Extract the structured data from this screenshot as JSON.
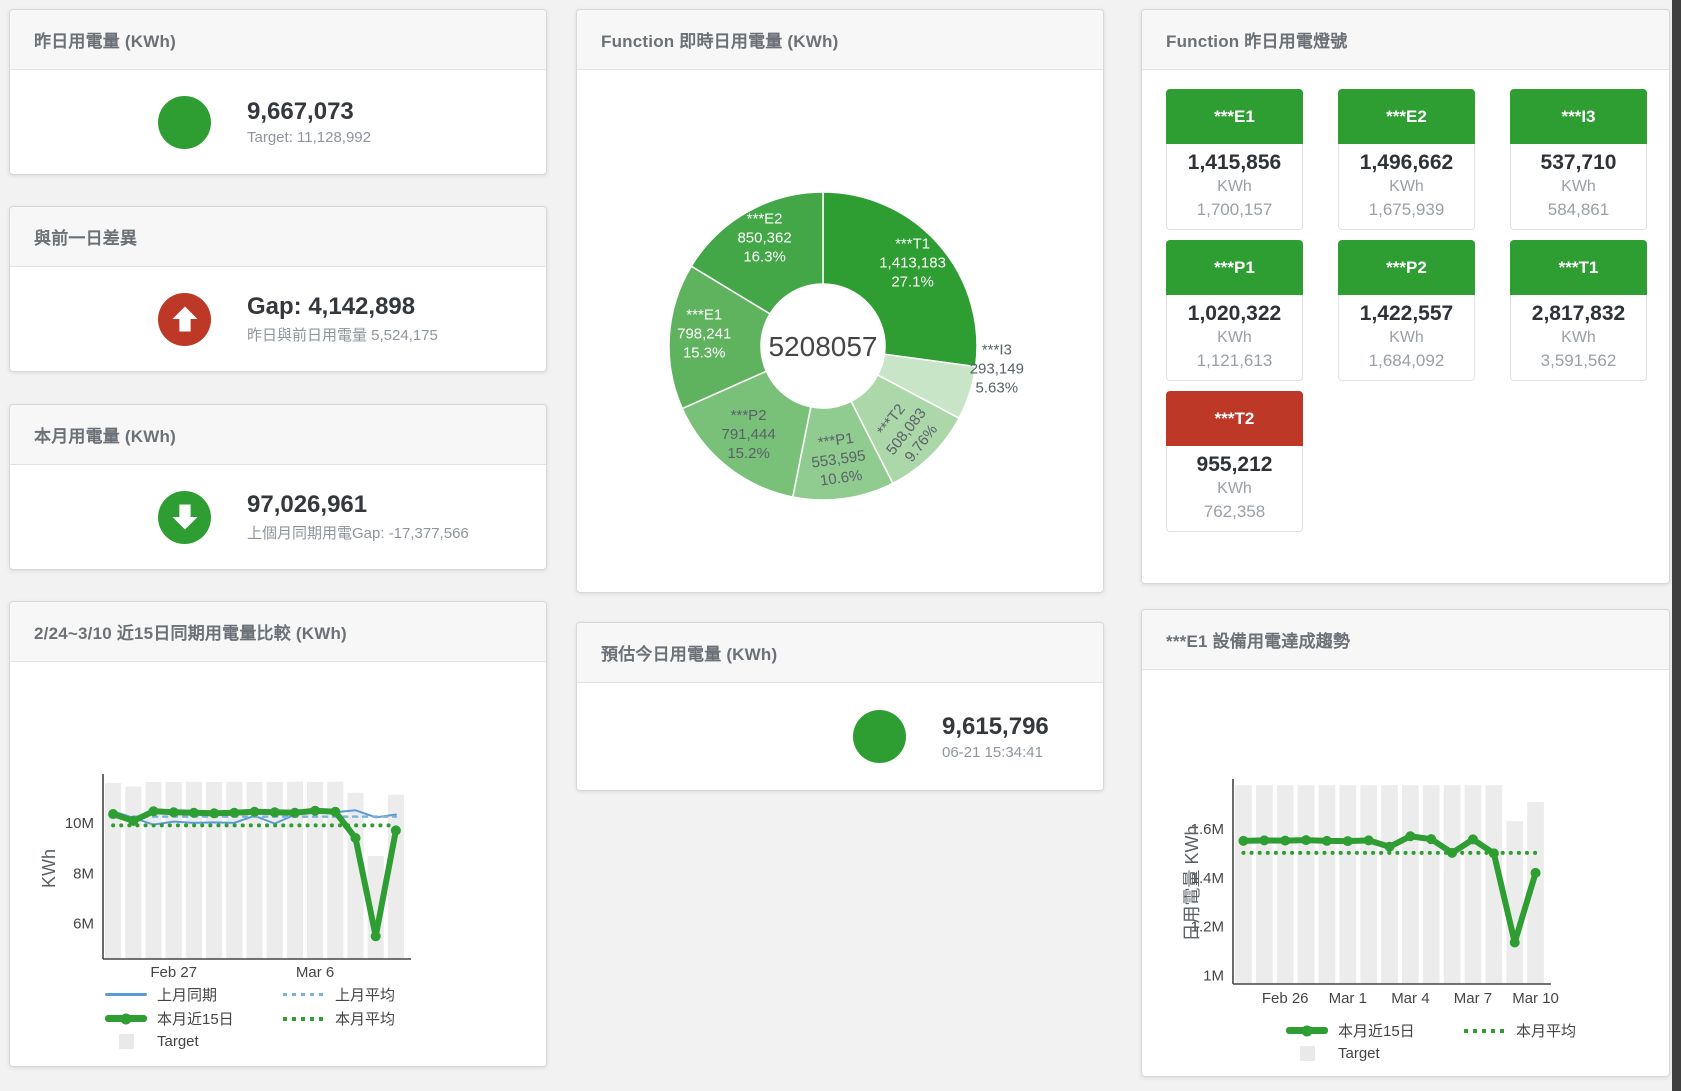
{
  "panels": {
    "yesterday": {
      "title": "昨日用電量 (KWh)",
      "value": "9,667,073",
      "subtitle": "Target: 11,128,992",
      "status_color": "#2E9D32"
    },
    "gap": {
      "title": "與前一日差異",
      "value": "Gap: 4,142,898",
      "subtitle": "昨日與前日用電量 5,524,175",
      "status_color": "#BD3826",
      "icon": "arrow-up"
    },
    "month": {
      "title": "本月用電量 (KWh)",
      "value": "97,026,961",
      "subtitle": "上個月同期用電Gap: -17,377,566",
      "status_color": "#2E9D32",
      "icon": "arrow-down"
    },
    "estimate": {
      "title": "預估今日用電量 (KWh)",
      "value": "9,615,796",
      "subtitle": "06-21 15:34:41",
      "status_color": "#2E9D32"
    },
    "donut": {
      "title": "Function 即時日用電量 (KWh)"
    },
    "lights": {
      "title": "Function 昨日用電燈號",
      "tiles": [
        {
          "label": "***E1",
          "value": "1,415,856",
          "unit": "KWh",
          "target": "1,700,157",
          "header_color": "#2E9D32"
        },
        {
          "label": "***E2",
          "value": "1,496,662",
          "unit": "KWh",
          "target": "1,675,939",
          "header_color": "#2E9D32"
        },
        {
          "label": "***I3",
          "value": "537,710",
          "unit": "KWh",
          "target": "584,861",
          "header_color": "#2E9D32"
        },
        {
          "label": "***P1",
          "value": "1,020,322",
          "unit": "KWh",
          "target": "1,121,613",
          "header_color": "#2E9D32"
        },
        {
          "label": "***P2",
          "value": "1,422,557",
          "unit": "KWh",
          "target": "1,684,092",
          "header_color": "#2E9D32"
        },
        {
          "label": "***T1",
          "value": "2,817,832",
          "unit": "KWh",
          "target": "3,591,562",
          "header_color": "#2E9D32"
        },
        {
          "label": "***T2",
          "value": "955,212",
          "unit": "KWh",
          "target": "762,358",
          "header_color": "#BD3826"
        }
      ]
    },
    "compare": {
      "title": "2/24~3/10 近15日同期用電量比較 (KWh)"
    },
    "trend": {
      "title": "***E1 設備用電達成趨勢"
    }
  },
  "chart_data": [
    {
      "type": "pie",
      "title": "Function 即時日用電量 (KWh)",
      "center_total": "5208057",
      "slices": [
        {
          "name": "***T1",
          "value": 1413183,
          "label_value": "1,413,183",
          "pct": "27.1%",
          "color": "#2E9D32",
          "text_color": "#ffffff",
          "label_pos": "inside",
          "rot": 0,
          "label_r": 119
        },
        {
          "name": "***I3",
          "value": 293149,
          "label_value": "293,149",
          "pct": "5.63%",
          "color": "#C9E5C7",
          "text_color": "#5a6268",
          "label_pos": "outside",
          "rot": 0,
          "label_r": 176,
          "label_angle": 99
        },
        {
          "name": "***T2",
          "value": 508083,
          "label_value": "508,083",
          "pct": "9.76%",
          "color": "#ABD7A9",
          "text_color": "#5a6268",
          "label_pos": "inside",
          "rot": -52,
          "label_r": 124
        },
        {
          "name": "***P1",
          "value": 553595,
          "label_value": "553,595",
          "pct": "10.6%",
          "color": "#90CB8F",
          "text_color": "#5a6268",
          "label_pos": "inside",
          "rot": -8,
          "label_r": 119
        },
        {
          "name": "***P2",
          "value": 791444,
          "label_value": "791,444",
          "pct": "15.2%",
          "color": "#79C078",
          "text_color": "#5a6268",
          "label_pos": "inside",
          "rot": 0,
          "label_r": 119
        },
        {
          "name": "***E1",
          "value": 798241,
          "label_value": "798,241",
          "pct": "15.3%",
          "color": "#5FB35F",
          "text_color": "#ffffff",
          "label_pos": "inside",
          "rot": 0,
          "label_r": 119
        },
        {
          "name": "***E2",
          "value": 850362,
          "label_value": "850,362",
          "pct": "16.3%",
          "color": "#43A747",
          "text_color": "#ffffff",
          "label_pos": "inside",
          "rot": 0,
          "label_r": 119
        }
      ]
    },
    {
      "type": "line",
      "title": "2/24~3/10 近15日同期用電量比較 (KWh)",
      "ylabel": "KWh",
      "x_count": 15,
      "ylim": [
        4600000,
        11780000
      ],
      "y_ticks": [
        {
          "v": 6000000,
          "label": "6M"
        },
        {
          "v": 8000000,
          "label": "8M"
        },
        {
          "v": 10000000,
          "label": "10M"
        }
      ],
      "x_tick_labels": [
        {
          "index": 3,
          "label": "Feb 27"
        },
        {
          "index": 10,
          "label": "Mar 6"
        }
      ],
      "target_bars": {
        "name": "Target",
        "color": "#ececec",
        "values": [
          11580000,
          11440000,
          11620000,
          11620000,
          11630000,
          11620000,
          11630000,
          11620000,
          11620000,
          11630000,
          11620000,
          11630000,
          11190000,
          8690000,
          11120000
        ]
      },
      "series": [
        {
          "name": "上月同期",
          "color": "#5B9BD5",
          "width": 2,
          "dash": "",
          "marker": false,
          "values": [
            10460000,
            10200000,
            9930000,
            10050000,
            10000000,
            10020000,
            10000000,
            10280000,
            9970000,
            10330000,
            10480000,
            10420000,
            10500000,
            10220000,
            10330000
          ]
        },
        {
          "name": "上月平均",
          "color": "#7EB0DF",
          "width": 2.5,
          "dash": "4 6",
          "marker": false,
          "const": 10250000
        },
        {
          "name": "本月近15日",
          "color": "#2E9D32",
          "width": 6,
          "dash": "",
          "marker": true,
          "values": [
            10350000,
            10080000,
            10460000,
            10420000,
            10400000,
            10380000,
            10400000,
            10440000,
            10420000,
            10400000,
            10480000,
            10440000,
            9400000,
            5500000,
            9700000
          ]
        },
        {
          "name": "本月平均",
          "color": "#2E9D32",
          "width": 4,
          "dash": "0.1 8",
          "marker": false,
          "const": 9900000
        }
      ]
    },
    {
      "type": "line",
      "title": "***E1 設備用電達成趨勢",
      "ylabel": "日用電量 KWh",
      "x_count": 15,
      "ylim": [
        965000,
        1788000
      ],
      "y_ticks": [
        {
          "v": 1000000,
          "label": "1M"
        },
        {
          "v": 1200000,
          "label": "1.2M"
        },
        {
          "v": 1400000,
          "label": "1.4M"
        },
        {
          "v": 1600000,
          "label": "1.6M"
        }
      ],
      "x_tick_labels": [
        {
          "index": 2,
          "label": "Feb 26"
        },
        {
          "index": 5,
          "label": "Mar 1"
        },
        {
          "index": 8,
          "label": "Mar 4"
        },
        {
          "index": 11,
          "label": "Mar 7"
        },
        {
          "index": 14,
          "label": "Mar 10"
        }
      ],
      "target_bars": {
        "name": "Target",
        "color": "#ececec",
        "values": [
          1779000,
          1779000,
          1779000,
          1779000,
          1779000,
          1779000,
          1779000,
          1779000,
          1779000,
          1779000,
          1779000,
          1779000,
          1779000,
          1632000,
          1710000
        ]
      },
      "series": [
        {
          "name": "本月近15日",
          "color": "#2E9D32",
          "width": 6,
          "dash": "",
          "marker": true,
          "values": [
            1551000,
            1553000,
            1552000,
            1554000,
            1551000,
            1550000,
            1553000,
            1527000,
            1570000,
            1558000,
            1502000,
            1557000,
            1500000,
            1135000,
            1420000
          ]
        },
        {
          "name": "本月平均",
          "color": "#2E9D32",
          "width": 4,
          "dash": "0.1 8",
          "marker": false,
          "const": 1502000
        }
      ]
    }
  ]
}
